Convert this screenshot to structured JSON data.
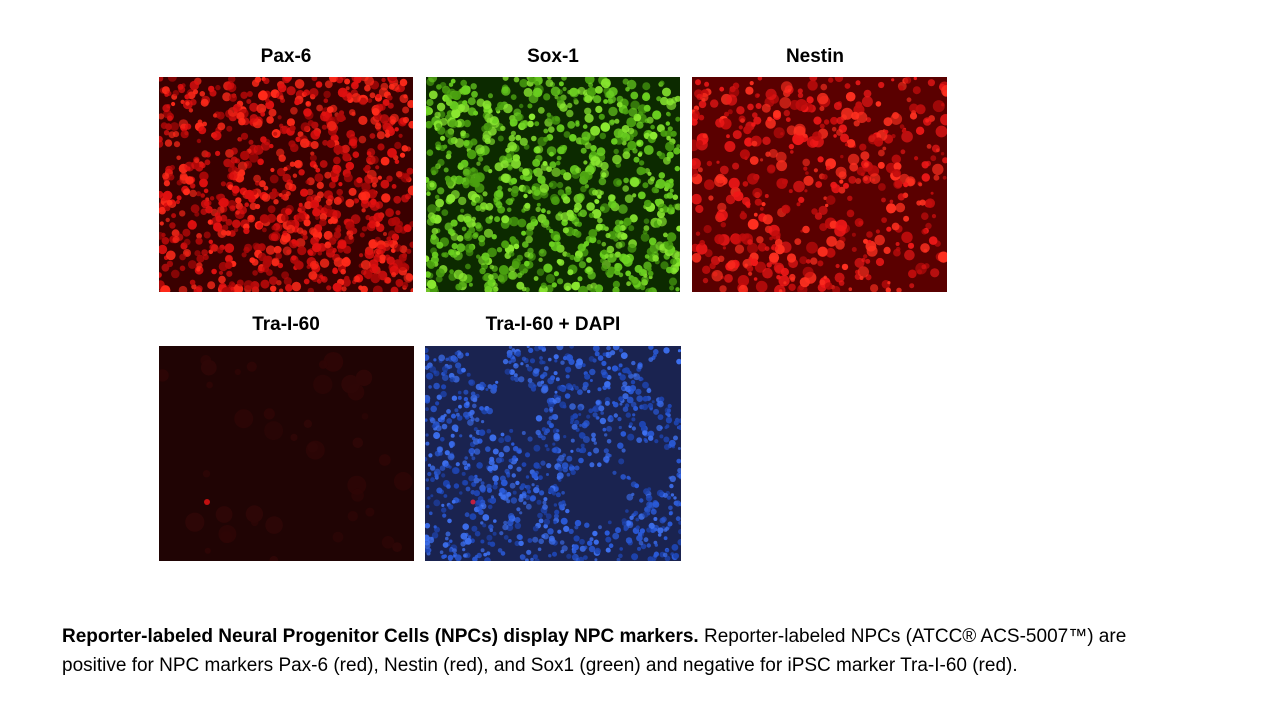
{
  "panels": [
    {
      "label": "Pax-6"
    },
    {
      "label": "Sox-1"
    },
    {
      "label": "Nestin"
    },
    {
      "label": "Tra-I-60"
    },
    {
      "label": "Tra-I-60 + DAPI"
    }
  ],
  "caption": {
    "bold": "Reporter-labeled Neural Progenitor Cells (NPCs) display NPC markers.",
    "text": "Reporter-labeled NPCs (ATCC® ACS-5007™) are positive for NPC markers Pax-6 (red), Nestin (red), and Sox1 (green) and negative for iPSC marker Tra-I-60 (red)."
  }
}
